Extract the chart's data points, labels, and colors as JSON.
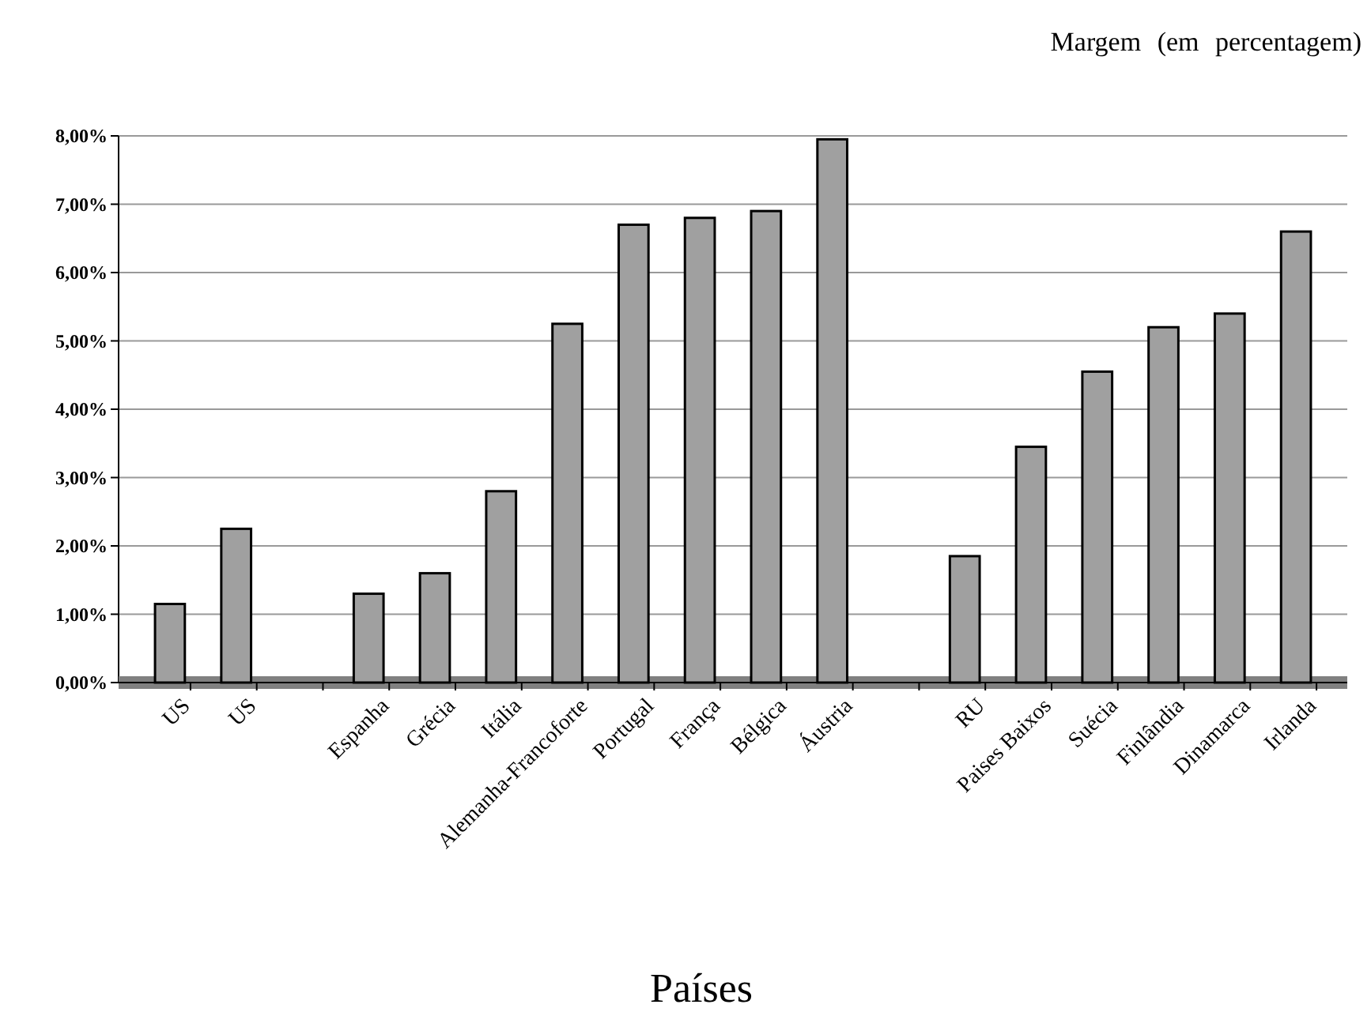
{
  "chart_data": {
    "type": "bar",
    "ylabel": "Margem (em percentagem)",
    "xlabel": "Países",
    "categories": [
      "US",
      "US",
      null,
      "Espanha",
      "Grécia",
      "Itália",
      "Alemanha-Francoforte",
      "Portugal",
      "França",
      "Bélgica",
      "Áustria",
      null,
      "RU",
      "Paises Baixos",
      "Suécia",
      "Finlândia",
      "Dinamarca",
      "Irlanda"
    ],
    "values": [
      1.15,
      2.25,
      null,
      1.3,
      1.6,
      2.8,
      5.25,
      6.7,
      6.8,
      6.9,
      7.95,
      null,
      1.85,
      3.45,
      4.55,
      5.2,
      5.4,
      6.6
    ],
    "color": "#a0a0a0",
    "ylim": [
      0,
      8
    ],
    "yticks": [
      {
        "value": 0,
        "label": "0,00%"
      },
      {
        "value": 1,
        "label": "1,00%"
      },
      {
        "value": 2,
        "label": "2,00%"
      },
      {
        "value": 3,
        "label": "3,00%"
      },
      {
        "value": 4,
        "label": "4,00%"
      },
      {
        "value": 5,
        "label": "5,00%"
      },
      {
        "value": 6,
        "label": "6,00%"
      },
      {
        "value": 7,
        "label": "7,00%"
      },
      {
        "value": 8,
        "label": "8,00%"
      }
    ],
    "grid": "y"
  }
}
